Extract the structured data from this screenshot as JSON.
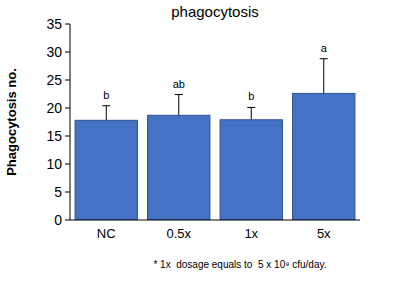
{
  "chart_data": {
    "type": "bar",
    "title": "phagocytosis",
    "y_label": "Phagocytosis no.",
    "categories": [
      "NC",
      "0.5x",
      "1x",
      "5x"
    ],
    "values": [
      17.8,
      18.7,
      17.9,
      22.6
    ],
    "errors": [
      2.6,
      3.7,
      2.2,
      6.2
    ],
    "annotations": [
      "b",
      "ab",
      "b",
      "a"
    ],
    "color": "#4472c4",
    "ylim": [
      0,
      35
    ],
    "yticks": [
      0,
      5,
      10,
      15,
      20,
      25,
      30,
      35
    ],
    "grid": false,
    "footnote": "* 1x  dosage equals to  5 x 10⁹ cfu/day."
  }
}
